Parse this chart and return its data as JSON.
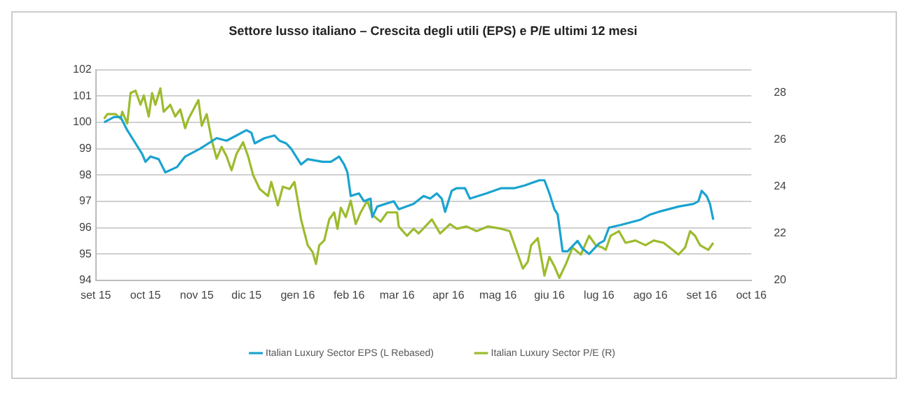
{
  "chart_data": {
    "type": "line",
    "title": "Settore lusso italiano – Crescita degli utili (EPS) e P/E ultimi 12 mesi",
    "xlim": [
      "2015-09-01",
      "2016-10-01"
    ],
    "xticks": [
      {
        "value": "2015-09-01",
        "label": "set 15"
      },
      {
        "value": "2015-10-01",
        "label": "oct 15"
      },
      {
        "value": "2015-11-01",
        "label": "nov 15"
      },
      {
        "value": "2015-12-01",
        "label": "dic 15"
      },
      {
        "value": "2016-01-01",
        "label": "gen 16"
      },
      {
        "value": "2016-02-01",
        "label": "feb 16"
      },
      {
        "value": "2016-03-01",
        "label": "mar 16"
      },
      {
        "value": "2016-04-01",
        "label": "apr 16"
      },
      {
        "value": "2016-05-01",
        "label": "mag 16"
      },
      {
        "value": "2016-06-01",
        "label": "giu 16"
      },
      {
        "value": "2016-07-01",
        "label": "lug 16"
      },
      {
        "value": "2016-08-01",
        "label": "ago 16"
      },
      {
        "value": "2016-09-01",
        "label": "set 16"
      },
      {
        "value": "2016-10-01",
        "label": "oct 16"
      }
    ],
    "ylim": [
      94,
      102
    ],
    "yticks": [
      94,
      95,
      96,
      97,
      98,
      99,
      100,
      101,
      102
    ],
    "y2lim": [
      20,
      29
    ],
    "y2ticks": [
      20,
      22,
      24,
      26,
      28
    ],
    "grid": "y",
    "legend": "bottom",
    "marker": "none",
    "line_style": "solid",
    "series": [
      {
        "name": "Italian Luxury Sector EPS (L Rebased)",
        "color": "#1aa3d0",
        "x": [
          "2015-09-06",
          "2015-09-12",
          "2015-09-16",
          "2015-09-20",
          "2015-09-25",
          "2015-09-29",
          "2015-10-01",
          "2015-10-04",
          "2015-10-09",
          "2015-10-13",
          "2015-10-20",
          "2015-10-25",
          "2015-11-03",
          "2015-11-13",
          "2015-11-19",
          "2015-11-25",
          "2015-12-01",
          "2015-12-04",
          "2015-12-06",
          "2015-12-12",
          "2015-12-18",
          "2015-12-21",
          "2015-12-25",
          "2015-12-28",
          "2015-12-31",
          "2016-01-03",
          "2016-01-07",
          "2016-01-16",
          "2016-01-21",
          "2016-01-26",
          "2016-01-29",
          "2016-01-31",
          "2016-02-02",
          "2016-02-07",
          "2016-02-10",
          "2016-02-14",
          "2016-02-15",
          "2016-02-18",
          "2016-02-28",
          "2016-03-02",
          "2016-03-11",
          "2016-03-17",
          "2016-03-21",
          "2016-03-25",
          "2016-03-28",
          "2016-03-30",
          "2016-04-03",
          "2016-04-06",
          "2016-04-11",
          "2016-04-14",
          "2016-04-24",
          "2016-05-03",
          "2016-05-11",
          "2016-05-17",
          "2016-05-26",
          "2016-05-29",
          "2016-06-01",
          "2016-06-04",
          "2016-06-06",
          "2016-06-09",
          "2016-06-12",
          "2016-06-18",
          "2016-06-21",
          "2016-06-25",
          "2016-06-28",
          "2016-07-01",
          "2016-07-04",
          "2016-07-07",
          "2016-07-14",
          "2016-07-26",
          "2016-08-01",
          "2016-08-06",
          "2016-08-12",
          "2016-08-18",
          "2016-08-27",
          "2016-08-30",
          "2016-09-01",
          "2016-09-04",
          "2016-09-06",
          "2016-09-08"
        ],
        "values": [
          100.0,
          100.2,
          100.2,
          99.7,
          99.2,
          98.8,
          98.5,
          98.7,
          98.6,
          98.1,
          98.3,
          98.7,
          99.0,
          99.4,
          99.3,
          99.5,
          99.7,
          99.6,
          99.2,
          99.4,
          99.5,
          99.3,
          99.2,
          99.0,
          98.7,
          98.4,
          98.6,
          98.5,
          98.5,
          98.7,
          98.4,
          98.1,
          97.2,
          97.3,
          97.0,
          97.1,
          96.4,
          96.8,
          97.0,
          96.7,
          96.9,
          97.2,
          97.1,
          97.3,
          97.1,
          96.6,
          97.4,
          97.5,
          97.5,
          97.1,
          97.3,
          97.5,
          97.5,
          97.6,
          97.8,
          97.8,
          97.3,
          96.7,
          96.5,
          95.1,
          95.1,
          95.5,
          95.2,
          95.0,
          95.2,
          95.4,
          95.5,
          96.0,
          96.1,
          96.3,
          96.5,
          96.6,
          96.7,
          96.8,
          96.9,
          97.0,
          97.4,
          97.2,
          96.9,
          96.3
        ]
      },
      {
        "name": "Italian Luxury Sector P/E (R)",
        "color": "#9cbb2e",
        "axis": "y2",
        "x": [
          "2015-09-06",
          "2015-09-08",
          "2015-09-13",
          "2015-09-16",
          "2015-09-17",
          "2015-09-20",
          "2015-09-22",
          "2015-09-25",
          "2015-09-28",
          "2015-09-30",
          "2015-10-03",
          "2015-10-05",
          "2015-10-07",
          "2015-10-10",
          "2015-10-12",
          "2015-10-16",
          "2015-10-19",
          "2015-10-22",
          "2015-10-25",
          "2015-10-27",
          "2015-11-02",
          "2015-11-04",
          "2015-11-07",
          "2015-11-10",
          "2015-11-13",
          "2015-11-16",
          "2015-11-19",
          "2015-11-22",
          "2015-11-25",
          "2015-11-29",
          "2015-12-02",
          "2015-12-05",
          "2015-12-09",
          "2015-12-14",
          "2015-12-16",
          "2015-12-20",
          "2015-12-23",
          "2015-12-27",
          "2015-12-30",
          "2016-01-01",
          "2016-01-03",
          "2016-01-07",
          "2016-01-10",
          "2016-01-12",
          "2016-01-14",
          "2016-01-17",
          "2016-01-20",
          "2016-01-23",
          "2016-01-25",
          "2016-01-27",
          "2016-01-30",
          "2016-02-02",
          "2016-02-05",
          "2016-02-08",
          "2016-02-12",
          "2016-02-15",
          "2016-02-20",
          "2016-02-24",
          "2016-03-01",
          "2016-03-02",
          "2016-03-07",
          "2016-03-11",
          "2016-03-14",
          "2016-03-18",
          "2016-03-22",
          "2016-03-27",
          "2016-04-02",
          "2016-04-06",
          "2016-04-12",
          "2016-04-18",
          "2016-04-25",
          "2016-05-03",
          "2016-05-08",
          "2016-05-11",
          "2016-05-16",
          "2016-05-19",
          "2016-05-21",
          "2016-05-25",
          "2016-05-29",
          "2016-06-01",
          "2016-06-04",
          "2016-06-07",
          "2016-06-11",
          "2016-06-15",
          "2016-06-20",
          "2016-06-25",
          "2016-06-29",
          "2016-07-03",
          "2016-07-05",
          "2016-07-08",
          "2016-07-13",
          "2016-07-17",
          "2016-07-23",
          "2016-07-29",
          "2016-08-03",
          "2016-08-09",
          "2016-08-18",
          "2016-08-22",
          "2016-08-25",
          "2016-08-28",
          "2016-08-31",
          "2016-09-05",
          "2016-09-08"
        ],
        "values": [
          26.9,
          27.1,
          27.1,
          26.9,
          27.2,
          26.7,
          28.0,
          28.1,
          27.5,
          27.9,
          27.0,
          28.0,
          27.5,
          28.2,
          27.2,
          27.5,
          27.0,
          27.3,
          26.5,
          26.9,
          27.7,
          26.6,
          27.1,
          26.0,
          25.2,
          25.7,
          25.3,
          24.7,
          25.4,
          25.9,
          25.3,
          24.5,
          23.9,
          23.6,
          24.2,
          23.2,
          24.0,
          23.9,
          24.2,
          23.4,
          22.6,
          21.5,
          21.2,
          20.7,
          21.5,
          21.7,
          22.6,
          22.9,
          22.2,
          23.1,
          22.7,
          23.4,
          22.4,
          22.9,
          23.4,
          22.8,
          22.5,
          22.9,
          22.9,
          22.3,
          21.9,
          22.2,
          22.0,
          22.3,
          22.6,
          22.0,
          22.4,
          22.2,
          22.3,
          22.1,
          22.3,
          22.2,
          22.1,
          21.5,
          20.5,
          20.8,
          21.5,
          21.8,
          20.2,
          21.0,
          20.6,
          20.1,
          20.7,
          21.4,
          21.1,
          21.9,
          21.5,
          21.4,
          21.3,
          21.9,
          22.1,
          21.6,
          21.7,
          21.5,
          21.7,
          21.6,
          21.1,
          21.4,
          22.1,
          21.9,
          21.5,
          21.3,
          21.6
        ]
      }
    ]
  }
}
